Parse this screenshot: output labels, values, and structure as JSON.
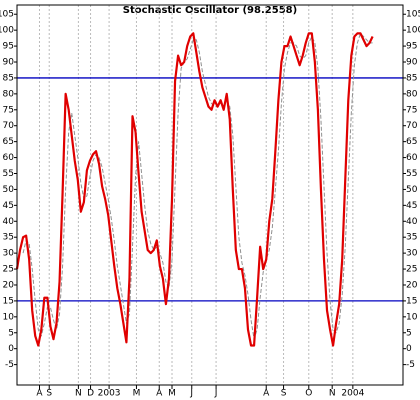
{
  "chart_data": {
    "type": "line",
    "title": "Stochastic Oscillator (98.2558)",
    "x": [
      0,
      1,
      2,
      3,
      4,
      5,
      6,
      7,
      8,
      9,
      10,
      11,
      12,
      13,
      14,
      15,
      16,
      17,
      18,
      19,
      20,
      21,
      22,
      23,
      24,
      25,
      26,
      27,
      28,
      29,
      30,
      31,
      32,
      33,
      34,
      35,
      36,
      37,
      38,
      39,
      40,
      41,
      42,
      43,
      44,
      45,
      46,
      47,
      48,
      49,
      50,
      51,
      52,
      53,
      54,
      55,
      56,
      57,
      58,
      59,
      60,
      61,
      62,
      63,
      64,
      65,
      66,
      67,
      68,
      69,
      70,
      71,
      72,
      73,
      74,
      75,
      76,
      77,
      78,
      79,
      80,
      81,
      82,
      83,
      84,
      85,
      86,
      87,
      88,
      89,
      90,
      91,
      92,
      93,
      94,
      95,
      96,
      97,
      98,
      99,
      100,
      101,
      102,
      103,
      104,
      105,
      106,
      107,
      108,
      109,
      110,
      111,
      112,
      113,
      114,
      115,
      116,
      117
    ],
    "series": [
      {
        "color": "#e00000",
        "width": 2.2,
        "dashed": false,
        "values": [
          25,
          31,
          35,
          35.5,
          28,
          12,
          4,
          1,
          6,
          16,
          16,
          7,
          3,
          8,
          21,
          49,
          80,
          75,
          67,
          59,
          53,
          43,
          46,
          56,
          59,
          61,
          62,
          58,
          51,
          47,
          42,
          34,
          26,
          19,
          14,
          8,
          2,
          22,
          73,
          68,
          55,
          43,
          37,
          31,
          30,
          31,
          34,
          26,
          22,
          14,
          22,
          47,
          84,
          92,
          89,
          90,
          95,
          98,
          99,
          93,
          87,
          82,
          79,
          76,
          75,
          78,
          76,
          78,
          75,
          80,
          72,
          50,
          31,
          25,
          25,
          19,
          6,
          1,
          1,
          16,
          32,
          25,
          28,
          40,
          47,
          62,
          78,
          90,
          95,
          95,
          98,
          95,
          92,
          89,
          92,
          96,
          99,
          99,
          90,
          75,
          50,
          28,
          12,
          6,
          1,
          8,
          14,
          28,
          53,
          78,
          92,
          98,
          99,
          99,
          97,
          95,
          96,
          98
        ]
      },
      {
        "color": "#909090",
        "width": 1,
        "dashed": true,
        "values": [
          null,
          null,
          30,
          34,
          33,
          25,
          15,
          6,
          4,
          8,
          13,
          13,
          9,
          6,
          11,
          26,
          50,
          68,
          74,
          67,
          60,
          52,
          47,
          48,
          54,
          59,
          61,
          60,
          57,
          52,
          47,
          41,
          34,
          26,
          20,
          14,
          8,
          11,
          32,
          54,
          65,
          55,
          45,
          37,
          33,
          31,
          32,
          30,
          27,
          21,
          19,
          28,
          51,
          74,
          88,
          90,
          91,
          94,
          97,
          97,
          93,
          87,
          83,
          79,
          77,
          76,
          76,
          77,
          76,
          78,
          76,
          67,
          51,
          35,
          27,
          23,
          17,
          9,
          3,
          6,
          16,
          24,
          28,
          31,
          38,
          50,
          62,
          77,
          88,
          93,
          96,
          96,
          95,
          92,
          91,
          92,
          96,
          98,
          96,
          88,
          72,
          51,
          30,
          15,
          6,
          5,
          8,
          17,
          32,
          53,
          74,
          89,
          96,
          99,
          98,
          97,
          96,
          96
        ]
      }
    ],
    "reference_lines": [
      85,
      15
    ],
    "reference_color": "#0000c0",
    "xlim": [
      0,
      127
    ],
    "xticks": [
      {
        "value": 7.4,
        "label": "A"
      },
      {
        "value": 10.6,
        "label": "S"
      },
      {
        "value": 20.2,
        "label": "N"
      },
      {
        "value": 24.2,
        "label": "D"
      },
      {
        "value": 30.3,
        "label": "2003"
      },
      {
        "value": 39.3,
        "label": "M"
      },
      {
        "value": 46.8,
        "label": "A"
      },
      {
        "value": 51,
        "label": "M"
      },
      {
        "value": 57.5,
        "label": "J"
      },
      {
        "value": 65.5,
        "label": "J"
      },
      {
        "value": 82,
        "label": "A"
      },
      {
        "value": 87.7,
        "label": "S"
      },
      {
        "value": 96,
        "label": "O"
      },
      {
        "value": 103.7,
        "label": "N"
      },
      {
        "value": 110.5,
        "label": "2004"
      }
    ],
    "ylim": [
      -11.4,
      107.9
    ],
    "yticks": [
      -5,
      0,
      5,
      10,
      15,
      20,
      25,
      30,
      35,
      40,
      45,
      50,
      55,
      60,
      65,
      70,
      75,
      80,
      85,
      90,
      95,
      100,
      105
    ],
    "grid": true
  }
}
